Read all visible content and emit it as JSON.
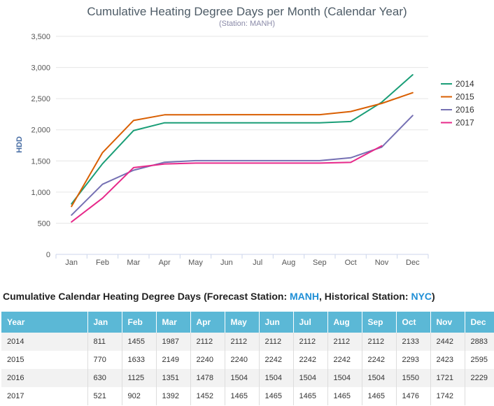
{
  "chart_data": {
    "type": "line",
    "title": "Cumulative Heating Degree Days per Month (Calendar Year)",
    "subtitle": "(Station: MANH)",
    "ylabel": "HDD",
    "xlabel": "",
    "categories": [
      "Jan",
      "Feb",
      "Mar",
      "Apr",
      "May",
      "Jun",
      "Jul",
      "Aug",
      "Sep",
      "Oct",
      "Nov",
      "Dec"
    ],
    "ylim": [
      0,
      3500
    ],
    "yticks": [
      0,
      500,
      1000,
      1500,
      2000,
      2500,
      3000,
      3500
    ],
    "ytick_labels": [
      "0",
      "500",
      "1,000",
      "1,500",
      "2,000",
      "2,500",
      "3,000",
      "3,500"
    ],
    "grid": true,
    "legend_position": "right",
    "series": [
      {
        "name": "2014",
        "color": "#1a9e77",
        "values": [
          811,
          1455,
          1987,
          2112,
          2112,
          2112,
          2112,
          2112,
          2112,
          2133,
          2442,
          2883
        ]
      },
      {
        "name": "2015",
        "color": "#d95f02",
        "values": [
          770,
          1633,
          2149,
          2240,
          2240,
          2242,
          2242,
          2242,
          2242,
          2293,
          2423,
          2595
        ]
      },
      {
        "name": "2016",
        "color": "#7570b3",
        "values": [
          630,
          1125,
          1351,
          1478,
          1504,
          1504,
          1504,
          1504,
          1504,
          1550,
          1721,
          2229
        ]
      },
      {
        "name": "2017",
        "color": "#e7298a",
        "values": [
          521,
          902,
          1392,
          1452,
          1465,
          1465,
          1465,
          1465,
          1465,
          1476,
          1742,
          null
        ]
      }
    ]
  },
  "table": {
    "heading_prefix": "Cumulative Calendar Heating Degree Days (Forecast Station: ",
    "forecast_station": "MANH",
    "heading_middle": ", Historical Station: ",
    "historical_station": "NYC",
    "heading_suffix": ")",
    "headers": [
      "Year",
      "Jan",
      "Feb",
      "Mar",
      "Apr",
      "May",
      "Jun",
      "Jul",
      "Aug",
      "Sep",
      "Oct",
      "Nov",
      "Dec"
    ],
    "rows": [
      [
        "2014",
        "811",
        "1455",
        "1987",
        "2112",
        "2112",
        "2112",
        "2112",
        "2112",
        "2112",
        "2133",
        "2442",
        "2883"
      ],
      [
        "2015",
        "770",
        "1633",
        "2149",
        "2240",
        "2240",
        "2242",
        "2242",
        "2242",
        "2242",
        "2293",
        "2423",
        "2595"
      ],
      [
        "2016",
        "630",
        "1125",
        "1351",
        "1478",
        "1504",
        "1504",
        "1504",
        "1504",
        "1504",
        "1550",
        "1721",
        "2229"
      ],
      [
        "2017",
        "521",
        "902",
        "1392",
        "1452",
        "1465",
        "1465",
        "1465",
        "1465",
        "1465",
        "1476",
        "1742",
        ""
      ]
    ]
  }
}
